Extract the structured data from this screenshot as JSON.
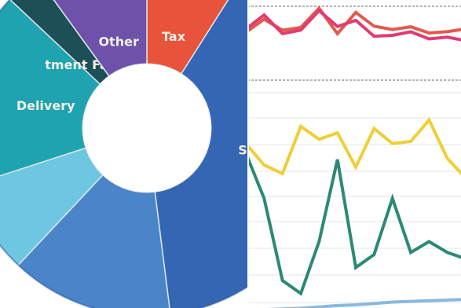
{
  "chart_data": [
    {
      "type": "pie",
      "subtype": "donut",
      "cropped": true,
      "slices": [
        {
          "label": "Tax",
          "value": 9,
          "color": "#e8533c"
        },
        {
          "label": "S",
          "value": 39,
          "color": "#3466b4"
        },
        {
          "label": "",
          "value": 14,
          "color": "#4a84c9"
        },
        {
          "label": "",
          "value": 8,
          "color": "#6ec7e0"
        },
        {
          "label": "Delivery",
          "value": 17,
          "color": "#1fa3b0"
        },
        {
          "label": "tment Factor",
          "value": 3,
          "color": "#1c4f56"
        },
        {
          "label": "Other",
          "value": 10,
          "color": "#6e52aa"
        }
      ]
    },
    {
      "type": "line",
      "cropped": true,
      "grid": true,
      "x": [
        1,
        2,
        3,
        4,
        5,
        6,
        7,
        8,
        9,
        10,
        11,
        12,
        13
      ],
      "series": [
        {
          "color": "#e15a4c",
          "values": [
            33,
            52,
            36,
            40,
            68,
            31,
            62,
            42,
            37,
            41,
            32,
            34,
            38
          ]
        },
        {
          "color": "#e03c74",
          "values": [
            27,
            43,
            22,
            26,
            48,
            30,
            37,
            19,
            20,
            24,
            16,
            18,
            14
          ]
        },
        {
          "color": "#f0ce37",
          "values": [
            64,
            44,
            36,
            80,
            68,
            74,
            42,
            78,
            64,
            66,
            86,
            50,
            32
          ]
        },
        {
          "color": "#2b8a73",
          "values": [
            42,
            0,
            -76,
            -88,
            -40,
            36,
            -64,
            -52,
            0,
            -50,
            -40,
            -50,
            -56
          ]
        },
        {
          "color": "#8ab9dd",
          "values": [
            0,
            0.5,
            1,
            1.5,
            2.5,
            3.5,
            4,
            5,
            6,
            6.5,
            7,
            7.5,
            8
          ]
        }
      ]
    }
  ]
}
